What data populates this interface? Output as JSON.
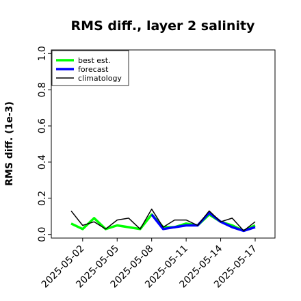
{
  "chart_data": {
    "type": "line",
    "title": "RMS diff., layer 2 salinity",
    "xlabel": "",
    "ylabel": "RMS diff. (1e-3)",
    "ylim": [
      -0.02,
      1.02
    ],
    "yticks": [
      "0.0",
      "0.2",
      "0.4",
      "0.6",
      "0.8",
      "1.0"
    ],
    "x": [
      "2025-05-01",
      "2025-05-02",
      "2025-05-03",
      "2025-05-04",
      "2025-05-05",
      "2025-05-06",
      "2025-05-07",
      "2025-05-08",
      "2025-05-09",
      "2025-05-10",
      "2025-05-11",
      "2025-05-12",
      "2025-05-13",
      "2025-05-14",
      "2025-05-15",
      "2025-05-16",
      "2025-05-17"
    ],
    "xticks": [
      "2025-05-02",
      "2025-05-05",
      "2025-05-08",
      "2025-05-11",
      "2025-05-14",
      "2025-05-17"
    ],
    "highlighted_xtick": "2025-05-08",
    "highlight_color": "#228b22",
    "grid": false,
    "legend_position": "top-left",
    "series": [
      {
        "name": "best est.",
        "color": "#00ff00",
        "values": [
          0.06,
          0.03,
          0.09,
          0.03,
          0.05,
          0.04,
          0.03,
          0.11,
          0.04,
          0.04,
          0.06,
          0.05,
          0.11,
          0.07,
          0.05,
          0.02,
          0.05
        ]
      },
      {
        "name": "forecast",
        "color": "#0000ff",
        "values": [
          null,
          null,
          null,
          null,
          null,
          null,
          null,
          0.11,
          0.03,
          0.04,
          0.05,
          0.05,
          0.12,
          0.07,
          0.04,
          0.02,
          0.04
        ]
      },
      {
        "name": "climatology",
        "color": "#000000",
        "values": [
          0.13,
          0.05,
          0.07,
          0.03,
          0.08,
          0.09,
          0.03,
          0.14,
          0.04,
          0.08,
          0.08,
          0.05,
          0.13,
          0.07,
          0.09,
          0.02,
          0.07
        ]
      }
    ]
  }
}
